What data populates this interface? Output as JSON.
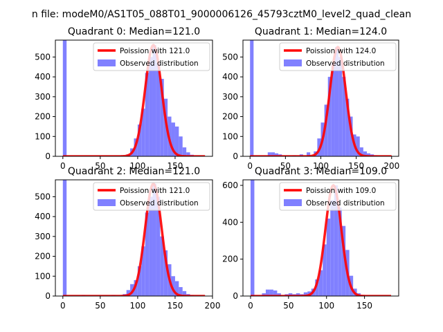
{
  "figure": {
    "suptitle": "n file: modeM0/AS1T05_088T01_9000006126_45793cztM0_level2_quad_clean"
  },
  "colors": {
    "histogram": "#8080ff",
    "poisson": "#ff0000",
    "axes": "#000000",
    "background": "#ffffff"
  },
  "chart_data": [
    {
      "type": "bar",
      "title": "Quadrant 0: Median=121.0",
      "xlabel": "",
      "ylabel": "",
      "xlim": [
        -10,
        200
      ],
      "ylim": [
        0,
        585
      ],
      "xticks": [
        0,
        50,
        100,
        150
      ],
      "yticks": [
        0,
        100,
        200,
        300,
        400,
        500
      ],
      "grid": false,
      "legend_position": "upper-right",
      "series": [
        {
          "name": "Poission with 121.0",
          "kind": "line",
          "mean": 121.0,
          "peak": 560
        },
        {
          "name": "Observed distribution",
          "kind": "histogram",
          "bin_width": 5,
          "bins": [
            {
              "x": 0,
              "y": 585
            },
            {
              "x": 85,
              "y": 10
            },
            {
              "x": 90,
              "y": 40
            },
            {
              "x": 95,
              "y": 90
            },
            {
              "x": 100,
              "y": 160
            },
            {
              "x": 105,
              "y": 240
            },
            {
              "x": 110,
              "y": 420
            },
            {
              "x": 115,
              "y": 500
            },
            {
              "x": 120,
              "y": 560
            },
            {
              "x": 125,
              "y": 470
            },
            {
              "x": 130,
              "y": 390
            },
            {
              "x": 135,
              "y": 290
            },
            {
              "x": 140,
              "y": 200
            },
            {
              "x": 145,
              "y": 170
            },
            {
              "x": 150,
              "y": 150
            },
            {
              "x": 155,
              "y": 100
            },
            {
              "x": 160,
              "y": 45
            },
            {
              "x": 165,
              "y": 20
            },
            {
              "x": 170,
              "y": 8
            }
          ]
        }
      ]
    },
    {
      "type": "bar",
      "title": "Quadrant 1: Median=124.0",
      "xlabel": "",
      "ylabel": "",
      "xlim": [
        -10,
        210
      ],
      "ylim": [
        0,
        585
      ],
      "xticks": [
        0,
        50,
        100,
        150,
        200
      ],
      "yticks": [
        0,
        100,
        200,
        300,
        400,
        500
      ],
      "grid": false,
      "legend_position": "upper-right",
      "series": [
        {
          "name": "Poission with 124.0",
          "kind": "line",
          "mean": 124.0,
          "peak": 550
        },
        {
          "name": "Observed distribution",
          "kind": "histogram",
          "bin_width": 5,
          "bins": [
            {
              "x": 0,
              "y": 585
            },
            {
              "x": 25,
              "y": 20
            },
            {
              "x": 30,
              "y": 20
            },
            {
              "x": 35,
              "y": 15
            },
            {
              "x": 40,
              "y": 10
            },
            {
              "x": 60,
              "y": 5
            },
            {
              "x": 70,
              "y": 10
            },
            {
              "x": 80,
              "y": 20
            },
            {
              "x": 90,
              "y": 25
            },
            {
              "x": 95,
              "y": 90
            },
            {
              "x": 100,
              "y": 170
            },
            {
              "x": 105,
              "y": 260
            },
            {
              "x": 110,
              "y": 400
            },
            {
              "x": 115,
              "y": 470
            },
            {
              "x": 120,
              "y": 550
            },
            {
              "x": 125,
              "y": 500
            },
            {
              "x": 130,
              "y": 400
            },
            {
              "x": 135,
              "y": 290
            },
            {
              "x": 140,
              "y": 200
            },
            {
              "x": 145,
              "y": 110
            },
            {
              "x": 150,
              "y": 100
            },
            {
              "x": 155,
              "y": 45
            },
            {
              "x": 160,
              "y": 25
            },
            {
              "x": 165,
              "y": 15
            },
            {
              "x": 170,
              "y": 10
            },
            {
              "x": 175,
              "y": 5
            }
          ]
        }
      ]
    },
    {
      "type": "bar",
      "title": "Quadrant 2: Median=121.0",
      "xlabel": "",
      "ylabel": "",
      "xlim": [
        -10,
        200
      ],
      "ylim": [
        0,
        585
      ],
      "xticks": [
        0,
        50,
        100,
        150,
        200
      ],
      "yticks": [
        0,
        100,
        200,
        300,
        400,
        500
      ],
      "grid": false,
      "legend_position": "upper-right",
      "series": [
        {
          "name": "Poission with 121.0",
          "kind": "line",
          "mean": 121.0,
          "peak": 565
        },
        {
          "name": "Observed distribution",
          "kind": "histogram",
          "bin_width": 5,
          "bins": [
            {
              "x": 0,
              "y": 585
            },
            {
              "x": 25,
              "y": 5
            },
            {
              "x": 65,
              "y": 5
            },
            {
              "x": 80,
              "y": 10
            },
            {
              "x": 85,
              "y": 30
            },
            {
              "x": 90,
              "y": 60
            },
            {
              "x": 95,
              "y": 80
            },
            {
              "x": 100,
              "y": 150
            },
            {
              "x": 105,
              "y": 250
            },
            {
              "x": 110,
              "y": 420
            },
            {
              "x": 115,
              "y": 500
            },
            {
              "x": 120,
              "y": 565
            },
            {
              "x": 125,
              "y": 500
            },
            {
              "x": 130,
              "y": 300
            },
            {
              "x": 135,
              "y": 230
            },
            {
              "x": 140,
              "y": 160
            },
            {
              "x": 145,
              "y": 100
            },
            {
              "x": 150,
              "y": 75
            },
            {
              "x": 155,
              "y": 45
            },
            {
              "x": 160,
              "y": 25
            },
            {
              "x": 165,
              "y": 10
            },
            {
              "x": 170,
              "y": 5
            }
          ]
        }
      ]
    },
    {
      "type": "bar",
      "title": "Quadrant 3: Median=109.0",
      "xlabel": "",
      "ylabel": "",
      "xlim": [
        -10,
        195
      ],
      "ylim": [
        0,
        630
      ],
      "xticks": [
        0,
        50,
        100,
        150
      ],
      "yticks": [
        0,
        200,
        400,
        600
      ],
      "grid": false,
      "legend_position": "upper-right",
      "series": [
        {
          "name": "Poission with 109.0",
          "kind": "line",
          "mean": 109.0,
          "peak": 600
        },
        {
          "name": "Observed distribution",
          "kind": "histogram",
          "bin_width": 5,
          "bins": [
            {
              "x": 0,
              "y": 630
            },
            {
              "x": 15,
              "y": 15
            },
            {
              "x": 20,
              "y": 35
            },
            {
              "x": 25,
              "y": 35
            },
            {
              "x": 30,
              "y": 30
            },
            {
              "x": 35,
              "y": 15
            },
            {
              "x": 45,
              "y": 10
            },
            {
              "x": 50,
              "y": 15
            },
            {
              "x": 55,
              "y": 10
            },
            {
              "x": 60,
              "y": 15
            },
            {
              "x": 65,
              "y": 10
            },
            {
              "x": 70,
              "y": 20
            },
            {
              "x": 75,
              "y": 25
            },
            {
              "x": 80,
              "y": 40
            },
            {
              "x": 85,
              "y": 90
            },
            {
              "x": 90,
              "y": 140
            },
            {
              "x": 95,
              "y": 280
            },
            {
              "x": 100,
              "y": 420
            },
            {
              "x": 105,
              "y": 520
            },
            {
              "x": 110,
              "y": 600
            },
            {
              "x": 115,
              "y": 480
            },
            {
              "x": 120,
              "y": 380
            },
            {
              "x": 125,
              "y": 250
            },
            {
              "x": 130,
              "y": 110
            },
            {
              "x": 135,
              "y": 40
            },
            {
              "x": 140,
              "y": 15
            },
            {
              "x": 145,
              "y": 5
            }
          ]
        }
      ]
    }
  ]
}
